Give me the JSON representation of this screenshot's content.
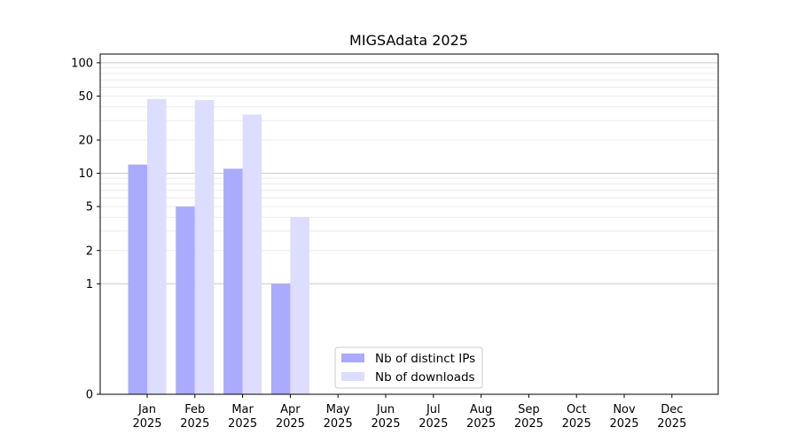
{
  "chart_data": {
    "type": "bar",
    "title": "MIGSAdata 2025",
    "xlabel": "",
    "ylabel": "",
    "yscale": "symlog",
    "ylim": [
      0,
      120
    ],
    "yticks": [
      0,
      1,
      2,
      5,
      10,
      20,
      50,
      100
    ],
    "grid": "y",
    "legend_position": "bottom-center",
    "categories": [
      {
        "month": "Jan",
        "year": "2025"
      },
      {
        "month": "Feb",
        "year": "2025"
      },
      {
        "month": "Mar",
        "year": "2025"
      },
      {
        "month": "Apr",
        "year": "2025"
      },
      {
        "month": "May",
        "year": "2025"
      },
      {
        "month": "Jun",
        "year": "2025"
      },
      {
        "month": "Jul",
        "year": "2025"
      },
      {
        "month": "Aug",
        "year": "2025"
      },
      {
        "month": "Sep",
        "year": "2025"
      },
      {
        "month": "Oct",
        "year": "2025"
      },
      {
        "month": "Nov",
        "year": "2025"
      },
      {
        "month": "Dec",
        "year": "2025"
      }
    ],
    "series": [
      {
        "name": "Nb of distinct IPs",
        "color": "#aaaaff",
        "values": [
          12,
          5,
          11,
          1,
          0,
          0,
          0,
          0,
          0,
          0,
          0,
          0
        ]
      },
      {
        "name": "Nb of downloads",
        "color": "#ddddff",
        "values": [
          47,
          46,
          34,
          4,
          0,
          0,
          0,
          0,
          0,
          0,
          0,
          0
        ]
      }
    ]
  }
}
